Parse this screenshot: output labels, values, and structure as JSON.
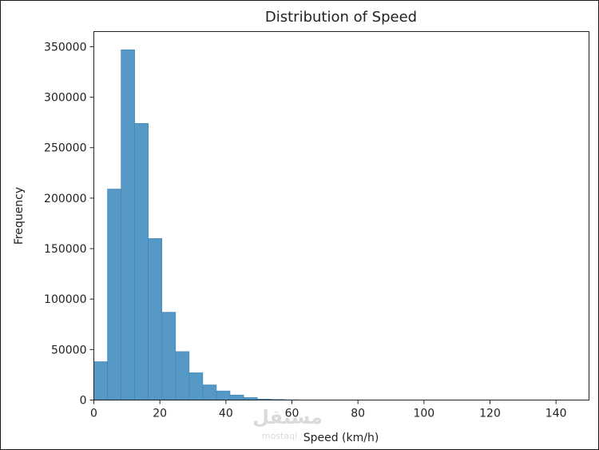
{
  "chart_data": {
    "type": "bar",
    "subtype": "histogram",
    "title": "Distribution of Speed",
    "xlabel": "Speed (km/h)",
    "ylabel": "Frequency",
    "xlim": [
      0,
      150
    ],
    "ylim": [
      0,
      365000
    ],
    "x_ticks": [
      0,
      20,
      40,
      60,
      80,
      100,
      120,
      140
    ],
    "y_ticks": [
      0,
      50000,
      100000,
      150000,
      200000,
      250000,
      300000,
      350000
    ],
    "bin_width": 4.125,
    "bins_start": [
      0,
      4.125,
      8.25,
      12.375,
      16.5,
      20.625,
      24.75,
      28.875,
      33,
      37.125,
      41.25,
      45.375,
      49.5,
      53.625,
      57.75,
      61.875,
      66,
      70.125
    ],
    "values": [
      38000,
      209000,
      347000,
      274000,
      160000,
      87000,
      48000,
      27000,
      15000,
      9000,
      5000,
      2500,
      1000,
      600,
      300,
      150,
      60,
      20
    ],
    "bar_color": "#4c92c3",
    "grid": false,
    "legend": "none"
  },
  "watermark": {
    "text": "مستقل",
    "subtext": "mostaql"
  }
}
